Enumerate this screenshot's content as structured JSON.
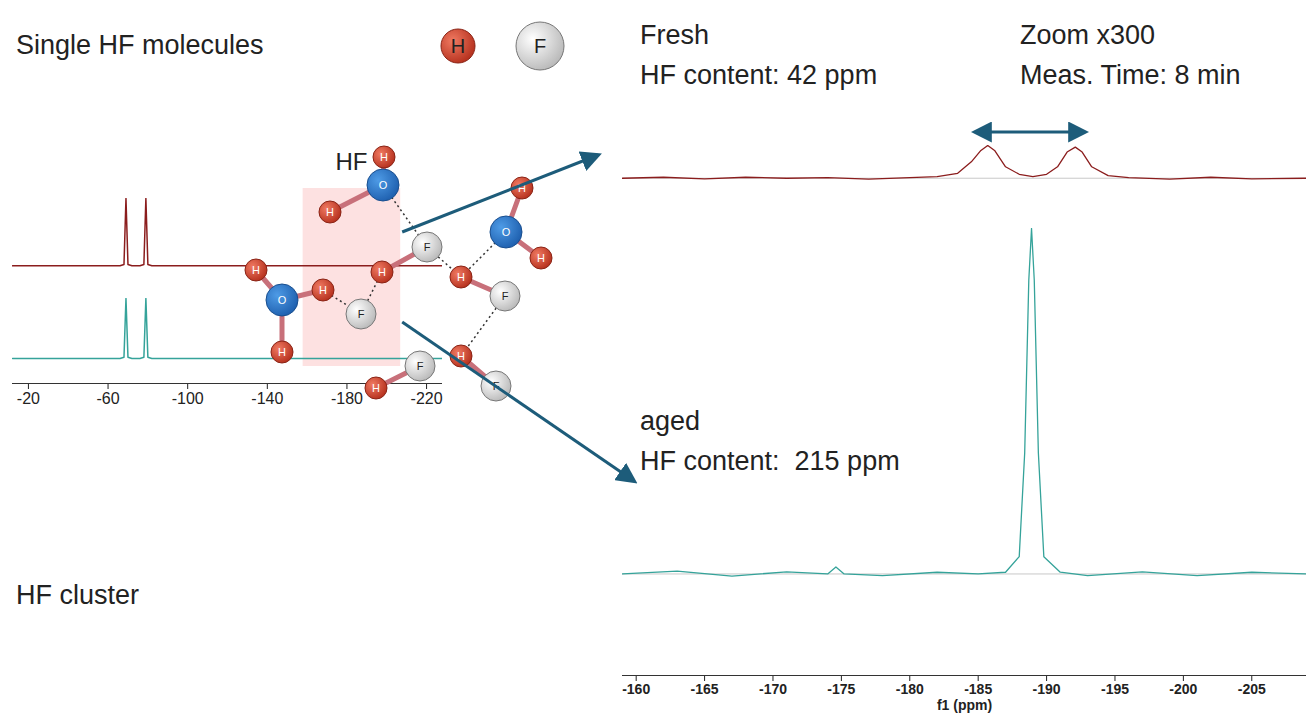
{
  "chart_data": [
    {
      "type": "line",
      "xlim": [
        -12,
        -228
      ],
      "xticks": [
        -20,
        -60,
        -100,
        -140,
        -180,
        -220
      ],
      "ylim": [
        -0.1,
        1
      ],
      "tick_labels": "x",
      "annotations": [
        {
          "text": "HF",
          "x": [
            -158,
            -207
          ]
        }
      ],
      "series": [
        {
          "color": "#8b1d1d",
          "x": [
            -12,
            -66,
            -68,
            -69,
            -70,
            -72,
            -76,
            -78,
            -79,
            -80,
            -82,
            -228
          ],
          "values": [
            0,
            0,
            0.02,
            1,
            0.02,
            0,
            0,
            0.02,
            1,
            0.02,
            0,
            0
          ]
        },
        {
          "color": "#35a39a",
          "x": [
            -12,
            -66,
            -68,
            -69,
            -70,
            -72,
            -76,
            -78,
            -79,
            -80,
            -82,
            -228
          ],
          "values": [
            0,
            0,
            0.02,
            1,
            0.02,
            0,
            0,
            0.02,
            1,
            0.02,
            0,
            0
          ]
        }
      ]
    },
    {
      "type": "line",
      "x_label": "f1 (ppm)",
      "xlim": [
        -159,
        -209
      ],
      "xticks": [
        -160,
        -165,
        -170,
        -175,
        -180,
        -185,
        -190,
        -195,
        -200,
        -205
      ],
      "ylim": [
        -0.1,
        1
      ],
      "tick_labels": "x",
      "annotations": [
        {
          "text": "Zoom x300"
        },
        {
          "text": "Meas. Time: 8 min"
        }
      ],
      "series": [
        {
          "name": "Fresh",
          "color": "#8b1d1d",
          "label": "HF content: 42 ppm",
          "x": [
            -159,
            -162,
            -165,
            -168,
            -171,
            -174,
            -177,
            -180,
            -182,
            -183.5,
            -184.5,
            -185.2,
            -185.7,
            -186.2,
            -187,
            -188,
            -189,
            -190,
            -190.8,
            -191.5,
            -192.1,
            -192.6,
            -193.3,
            -194.5,
            -196,
            -199,
            -202,
            -205,
            -209
          ],
          "values": [
            0,
            0.03,
            -0.02,
            0.03,
            0,
            0.02,
            -0.03,
            0.02,
            0.05,
            0.15,
            0.5,
            0.85,
            1,
            0.85,
            0.35,
            0.12,
            0.05,
            0.12,
            0.35,
            0.8,
            0.95,
            0.8,
            0.35,
            0.08,
            0.02,
            -0.03,
            0.03,
            -0.02,
            0
          ]
        },
        {
          "name": "aged",
          "color": "#35a39a",
          "label": "HF content:  215 ppm",
          "x": [
            -159,
            -163,
            -167,
            -171,
            -174,
            -174.6,
            -175.2,
            -178,
            -182,
            -185,
            -187,
            -188,
            -188.4,
            -188.7,
            -188.9,
            -189.1,
            -189.4,
            -189.8,
            -191,
            -193,
            -197,
            -201,
            -205,
            -209
          ],
          "values": [
            0,
            0.008,
            -0.006,
            0.006,
            0,
            0.02,
            0,
            -0.005,
            0.005,
            0,
            0.005,
            0.05,
            0.35,
            0.85,
            1,
            0.85,
            0.35,
            0.05,
            0.005,
            -0.005,
            0.006,
            -0.005,
            0.005,
            0
          ]
        }
      ]
    }
  ],
  "molecules": {
    "single": {
      "label": "Single HF molecules",
      "atoms": [
        "H",
        "F"
      ]
    },
    "cluster": {
      "label": "HF cluster",
      "atoms": [
        "O",
        "H",
        "H",
        "O",
        "H",
        "H",
        "O",
        "H",
        "H",
        "H",
        "F",
        "H",
        "F",
        "H",
        "F",
        "H",
        "F",
        "F",
        "H"
      ]
    }
  }
}
